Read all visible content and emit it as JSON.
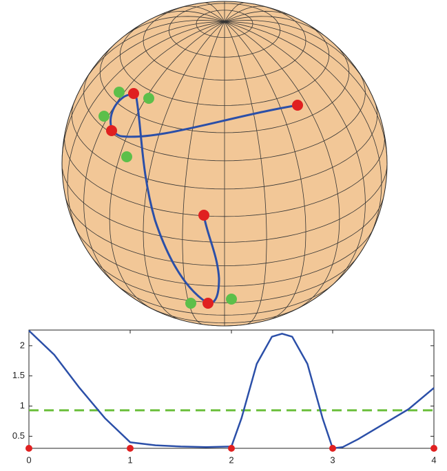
{
  "chart_data": {
    "type": "line",
    "x": [
      0,
      0.25,
      0.5,
      0.75,
      1,
      1.25,
      1.5,
      1.75,
      2,
      2.1,
      2.25,
      2.4,
      2.5,
      2.6,
      2.75,
      2.9,
      3,
      3.1,
      3.25,
      3.5,
      3.75,
      4
    ],
    "series": [
      {
        "color": "#2b4fa8",
        "values": [
          2.25,
          1.85,
          1.3,
          0.8,
          0.4,
          0.35,
          0.33,
          0.32,
          0.33,
          0.8,
          1.7,
          2.15,
          2.2,
          2.15,
          1.7,
          0.8,
          0.3,
          0.32,
          0.45,
          0.7,
          0.95,
          1.3
        ]
      }
    ],
    "hline": {
      "value": 0.93,
      "color": "#6cbf3c"
    },
    "markers": {
      "x": [
        0,
        1,
        2,
        3,
        4
      ],
      "values": [
        0.3,
        0.3,
        0.3,
        0.3,
        0.3
      ],
      "color": "#e02020"
    },
    "xlim": [
      0,
      4
    ],
    "ylim": [
      0.3,
      2.26
    ],
    "xticks": [
      0,
      1,
      2,
      3,
      4
    ],
    "yticks": [
      0.5,
      1,
      1.5,
      2
    ]
  }
}
